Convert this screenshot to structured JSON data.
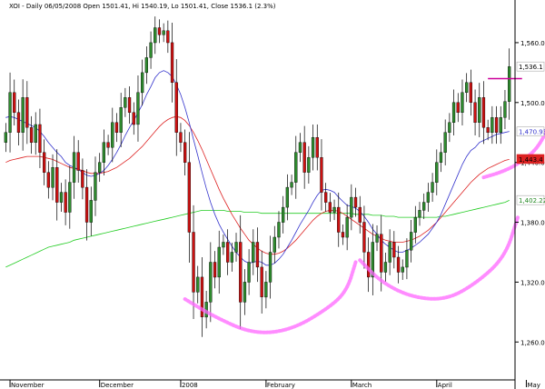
{
  "header": {
    "text": "XOI - Daily 06/05/2008 Open 1501.41, Hi 1540.19, Lo 1501.41, Close 1536.1 (2.3%)"
  },
  "colors": {
    "up_candle": "#2e8b2e",
    "down_candle": "#cc1111",
    "wick": "#000000",
    "ma_short": "#3333cc",
    "ma_mid": "#dd2222",
    "ma_long": "#22cc22",
    "annotation": "#ff66ff",
    "resistance": "#cc0099"
  },
  "chart_data": {
    "type": "candlestick",
    "title": "XOI - Daily 06/05/2008 Open 1501.41, Hi 1540.19, Lo 1501.41, Close 1536.1 (2.3%)",
    "y_axis_side": "right",
    "ylim": [
      1222,
      1590
    ],
    "y_ticks": [
      "1,560.0",
      "1,500.0",
      "1,440.0",
      "1,380.0",
      "1,320.0",
      "1,260.0"
    ],
    "y_tick_values": [
      1560,
      1500,
      1440,
      1380,
      1320,
      1260
    ],
    "x_labels": [
      "November",
      "December",
      "2008",
      "February",
      "March",
      "April",
      "May"
    ],
    "x_label_index": [
      1,
      22,
      41,
      61,
      81,
      101,
      122
    ],
    "last_value_labels": [
      {
        "text": "1,536.1",
        "value": 1536.1,
        "bg": "#ffffff",
        "fg": "#000000"
      },
      {
        "text": "1,470.93",
        "value": 1470.93,
        "bg": "#ffffff",
        "fg": "#3333cc"
      },
      {
        "text": "1,443.4",
        "value": 1443.4,
        "bg": "#dd2222",
        "fg": "#000000"
      },
      {
        "text": "1,402.22",
        "value": 1402.22,
        "bg": "#ffffff",
        "fg": "#228822"
      }
    ],
    "closes": [
      1470,
      1510,
      1490,
      1470,
      1505,
      1475,
      1460,
      1478,
      1450,
      1430,
      1415,
      1435,
      1400,
      1410,
      1390,
      1420,
      1450,
      1432,
      1415,
      1380,
      1402,
      1430,
      1440,
      1460,
      1455,
      1480,
      1470,
      1495,
      1505,
      1490,
      1478,
      1510,
      1530,
      1545,
      1560,
      1575,
      1568,
      1572,
      1560,
      1520,
      1470,
      1460,
      1440,
      1370,
      1310,
      1325,
      1285,
      1300,
      1340,
      1325,
      1355,
      1360,
      1340,
      1350,
      1360,
      1300,
      1320,
      1340,
      1360,
      1335,
      1305,
      1320,
      1350,
      1365,
      1380,
      1395,
      1415,
      1420,
      1450,
      1460,
      1430,
      1445,
      1465,
      1445,
      1410,
      1400,
      1390,
      1395,
      1370,
      1365,
      1385,
      1405,
      1395,
      1380,
      1350,
      1325,
      1360,
      1368,
      1330,
      1340,
      1360,
      1345,
      1330,
      1335,
      1352,
      1370,
      1385,
      1392,
      1400,
      1410,
      1420,
      1440,
      1450,
      1470,
      1480,
      1500,
      1490,
      1510,
      1520,
      1500,
      1480,
      1505,
      1475,
      1470,
      1485,
      1470,
      1485,
      1501,
      1536
    ],
    "ma_short": [
      1485,
      1486,
      1485,
      1483,
      1481,
      1479,
      1477,
      1475,
      1471,
      1466,
      1460,
      1455,
      1450,
      1446,
      1440,
      1437,
      1435,
      1433,
      1430,
      1427,
      1426,
      1427,
      1429,
      1432,
      1437,
      1443,
      1450,
      1458,
      1467,
      1475,
      1482,
      1490,
      1498,
      1508,
      1516,
      1525,
      1530,
      1532,
      1530,
      1526,
      1518,
      1508,
      1495,
      1480,
      1463,
      1447,
      1430,
      1414,
      1400,
      1388,
      1378,
      1370,
      1363,
      1356,
      1350,
      1345,
      1341,
      1339,
      1340,
      1341,
      1340,
      1337,
      1337,
      1339,
      1343,
      1348,
      1355,
      1362,
      1370,
      1378,
      1385,
      1392,
      1400,
      1407,
      1412,
      1413,
      1412,
      1410,
      1405,
      1401,
      1397,
      1396,
      1394,
      1391,
      1386,
      1380,
      1373,
      1368,
      1362,
      1358,
      1355,
      1352,
      1350,
      1350,
      1352,
      1354,
      1357,
      1360,
      1364,
      1368,
      1374,
      1380,
      1388,
      1398,
      1408,
      1418,
      1428,
      1438,
      1446,
      1452,
      1455,
      1460,
      1462,
      1464,
      1466,
      1468,
      1469,
      1470,
      1471
    ],
    "ma_mid": [
      1440,
      1442,
      1443,
      1444,
      1445,
      1446,
      1446,
      1446,
      1446,
      1445,
      1444,
      1443,
      1441,
      1439,
      1437,
      1435,
      1434,
      1433,
      1432,
      1430,
      1429,
      1429,
      1429,
      1430,
      1431,
      1433,
      1435,
      1438,
      1441,
      1444,
      1448,
      1452,
      1456,
      1461,
      1466,
      1471,
      1476,
      1480,
      1483,
      1485,
      1486,
      1485,
      1482,
      1477,
      1470,
      1462,
      1453,
      1443,
      1433,
      1423,
      1413,
      1404,
      1396,
      1388,
      1381,
      1374,
      1368,
      1362,
      1358,
      1354,
      1351,
      1349,
      1348,
      1348,
      1349,
      1351,
      1354,
      1358,
      1362,
      1367,
      1372,
      1377,
      1382,
      1386,
      1389,
      1391,
      1392,
      1392,
      1391,
      1389,
      1386,
      1383,
      1380,
      1377,
      1374,
      1371,
      1368,
      1366,
      1364,
      1362,
      1361,
      1360,
      1360,
      1360,
      1361,
      1362,
      1364,
      1366,
      1369,
      1372,
      1376,
      1380,
      1385,
      1390,
      1395,
      1400,
      1405,
      1410,
      1415,
      1420,
      1424,
      1428,
      1431,
      1434,
      1436,
      1438,
      1440,
      1442,
      1443
    ],
    "ma_long": [
      1335,
      1337,
      1339,
      1341,
      1343,
      1345,
      1347,
      1349,
      1351,
      1353,
      1355,
      1356,
      1357,
      1358,
      1359,
      1360,
      1362,
      1363,
      1364,
      1365,
      1366,
      1367,
      1368,
      1369,
      1370,
      1371,
      1372,
      1373,
      1374,
      1375,
      1376,
      1377,
      1378,
      1379,
      1380,
      1381,
      1382,
      1383,
      1384,
      1385,
      1386,
      1387,
      1388,
      1389,
      1390,
      1391,
      1392,
      1392,
      1392,
      1392,
      1392,
      1392,
      1391,
      1391,
      1391,
      1391,
      1390,
      1390,
      1390,
      1390,
      1389,
      1389,
      1389,
      1389,
      1389,
      1389,
      1389,
      1389,
      1389,
      1389,
      1389,
      1389,
      1389,
      1389,
      1389,
      1389,
      1389,
      1389,
      1389,
      1389,
      1389,
      1389,
      1388,
      1388,
      1388,
      1388,
      1387,
      1387,
      1387,
      1386,
      1386,
      1386,
      1385,
      1385,
      1385,
      1385,
      1385,
      1385,
      1385,
      1385,
      1385,
      1385,
      1386,
      1386,
      1387,
      1388,
      1389,
      1390,
      1391,
      1392,
      1393,
      1394,
      1395,
      1396,
      1397,
      1398,
      1399,
      1400,
      1402
    ],
    "resistance_line": {
      "from_index": 113,
      "to_index": 121,
      "value": 1524
    },
    "annotation_arcs": [
      {
        "points": [
          [
            42,
            1303
          ],
          [
            49,
            1285
          ],
          [
            58,
            1268
          ],
          [
            67,
            1272
          ],
          [
            76,
            1295
          ],
          [
            80,
            1312
          ],
          [
            82,
            1340
          ]
        ]
      },
      {
        "points": [
          [
            83,
            1342
          ],
          [
            88,
            1320
          ],
          [
            95,
            1305
          ],
          [
            103,
            1302
          ],
          [
            110,
            1318
          ],
          [
            117,
            1345
          ],
          [
            120,
            1385
          ]
        ]
      },
      {
        "points": [
          [
            112,
            1425
          ],
          [
            116,
            1430
          ],
          [
            120,
            1438
          ],
          [
            125,
            1455
          ],
          [
            128,
            1485
          ],
          [
            128,
            1505
          ]
        ]
      }
    ]
  }
}
